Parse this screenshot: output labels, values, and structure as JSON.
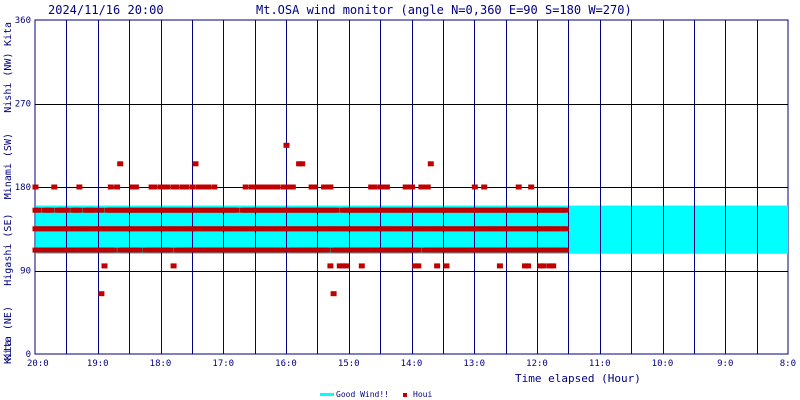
{
  "chart_data": {
    "type": "scatter",
    "title": "Mt.OSA wind monitor (angle N=0,360 E=90 S=180 W=270)",
    "timestamp": "2024/11/16 20:00",
    "xlabel": "Time elapsed (Hour)",
    "xlim": [
      0,
      12
    ],
    "x_ticks": [
      {
        "x": 0,
        "label": "20:0"
      },
      {
        "x": 1,
        "label": "19:0"
      },
      {
        "x": 2,
        "label": "18:0"
      },
      {
        "x": 3,
        "label": "17:0"
      },
      {
        "x": 4,
        "label": "16:0"
      },
      {
        "x": 5,
        "label": "15:0"
      },
      {
        "x": 6,
        "label": "14:0"
      },
      {
        "x": 7,
        "label": "13:0"
      },
      {
        "x": 8,
        "label": "12:0"
      },
      {
        "x": 9,
        "label": "11:0"
      },
      {
        "x": 10,
        "label": "10:0"
      },
      {
        "x": 11,
        "label": "9:0"
      },
      {
        "x": 12,
        "label": "8:0"
      }
    ],
    "ylim": [
      0,
      360
    ],
    "y_ticks": [
      0,
      90,
      180,
      270,
      360
    ],
    "direction_labels": [
      {
        "y": 22.5,
        "label": "Kita (NE)"
      },
      {
        "y": 112.5,
        "label": "Higashi (SE)"
      },
      {
        "y": 202.5,
        "label": "Minami (SW)"
      },
      {
        "y": 292.5,
        "label": "Nishi (NW)"
      },
      {
        "y": 360,
        "label": "Kita"
      }
    ],
    "good_wind_band": [
      108,
      160
    ],
    "series": [
      {
        "name": "Good Wind!!",
        "color": "#00ffff"
      },
      {
        "name": "Houi",
        "color": "#c00000"
      }
    ],
    "samples_per_hour": 20,
    "houi": [
      [
        135,
        112,
        155,
        180
      ],
      [
        155,
        112,
        135
      ],
      [
        135,
        112
      ],
      [
        155,
        135,
        112
      ],
      [
        135,
        112,
        155
      ],
      [
        112,
        155,
        135
      ],
      [
        135,
        112,
        180
      ],
      [
        155,
        112,
        135
      ],
      [
        112,
        135,
        155
      ],
      [
        135,
        155,
        112
      ],
      [
        155,
        112,
        135
      ],
      [
        135,
        112
      ],
      [
        112,
        135,
        155
      ],
      [
        135,
        155,
        112
      ],
      [
        155,
        112,
        135,
        180
      ],
      [
        112,
        135
      ],
      [
        135,
        112,
        155
      ],
      [
        155,
        112,
        135
      ],
      [
        112,
        135,
        155
      ],
      [
        135,
        112,
        155
      ],
      [
        135,
        112
      ],
      [
        155,
        112,
        135,
        65
      ],
      [
        95,
        112,
        135
      ],
      [
        155,
        135,
        112
      ],
      [
        112,
        135,
        155,
        180
      ],
      [
        135,
        112,
        155
      ],
      [
        155,
        180,
        135
      ],
      [
        135,
        155,
        112,
        205
      ],
      [
        155,
        112,
        135
      ],
      [
        135,
        155,
        112
      ],
      [
        135,
        112,
        155
      ],
      [
        112,
        135,
        155,
        180
      ],
      [
        155,
        112,
        135,
        180
      ],
      [
        135,
        155,
        112
      ],
      [
        155,
        135
      ],
      [
        112,
        135,
        155
      ],
      [
        135,
        112,
        155
      ],
      [
        155,
        112,
        135,
        180
      ],
      [
        135,
        155,
        112,
        180
      ],
      [
        112,
        135,
        155
      ],
      [
        135,
        112,
        155,
        180
      ],
      [
        135,
        155,
        112,
        180
      ],
      [
        155,
        112,
        135,
        180
      ],
      [
        135,
        112,
        155
      ],
      [
        155,
        135,
        95,
        180
      ],
      [
        112,
        135,
        155,
        180
      ],
      [
        135,
        155,
        112
      ],
      [
        155,
        112,
        135,
        180
      ],
      [
        135,
        155,
        112,
        180
      ],
      [
        112,
        135,
        155
      ],
      [
        155,
        112,
        135,
        180
      ],
      [
        135,
        112,
        155,
        205
      ],
      [
        155,
        112,
        135,
        180
      ],
      [
        112,
        135,
        155,
        180
      ],
      [
        135,
        155,
        112,
        180
      ],
      [
        155,
        112,
        135,
        180
      ],
      [
        135,
        155,
        112
      ],
      [
        112,
        135,
        155,
        180
      ],
      [
        135,
        112,
        155
      ],
      [
        155,
        112,
        135
      ],
      [
        135,
        155,
        112
      ],
      [
        135,
        112,
        155
      ],
      [
        112,
        135,
        155
      ],
      [
        135,
        112,
        155
      ],
      [
        155,
        112,
        135
      ],
      [
        112,
        135
      ],
      [
        135,
        155,
        112
      ],
      [
        155,
        112,
        135,
        180
      ],
      [
        135,
        112,
        155
      ],
      [
        112,
        135,
        155,
        180
      ],
      [
        155,
        112,
        135,
        180
      ],
      [
        135,
        155,
        112,
        180
      ],
      [
        155,
        112,
        135,
        180
      ],
      [
        135,
        112,
        155,
        180
      ],
      [
        112,
        135,
        155,
        180
      ],
      [
        135,
        155,
        112,
        180
      ],
      [
        155,
        112,
        135,
        180
      ],
      [
        135,
        112,
        155,
        180
      ],
      [
        112,
        135,
        155
      ],
      [
        135,
        112,
        155,
        180
      ],
      [
        155,
        135,
        225,
        180
      ],
      [
        135,
        112,
        155,
        180
      ],
      [
        155,
        112,
        135,
        180
      ],
      [
        155,
        112,
        135
      ],
      [
        135,
        155,
        112,
        205
      ],
      [
        112,
        135,
        155,
        205
      ],
      [
        155,
        112,
        135
      ],
      [
        135,
        112,
        155
      ],
      [
        155,
        112,
        135,
        180
      ],
      [
        135,
        155,
        112,
        180
      ],
      [
        135,
        112,
        155
      ],
      [
        155,
        135,
        112
      ],
      [
        135,
        112,
        155,
        180
      ],
      [
        112,
        135,
        155,
        180
      ],
      [
        155,
        135,
        95,
        180
      ],
      [
        135,
        112,
        155,
        65
      ],
      [
        155,
        112,
        135
      ],
      [
        135,
        112,
        95
      ],
      [
        112,
        135,
        155,
        95
      ],
      [
        135,
        155,
        112,
        95
      ],
      [
        155,
        112,
        135
      ],
      [
        135,
        112,
        155
      ],
      [
        112,
        135,
        155
      ],
      [
        135,
        112,
        155
      ],
      [
        155,
        112,
        135,
        95
      ],
      [
        135,
        112,
        155
      ],
      [
        135,
        155,
        112
      ],
      [
        155,
        112,
        135,
        180
      ],
      [
        135,
        112,
        155,
        180
      ],
      [
        112,
        135,
        155
      ],
      [
        155,
        112,
        135,
        180
      ],
      [
        135,
        155,
        112,
        180
      ],
      [
        155,
        112,
        135,
        180
      ],
      [
        135,
        112,
        155
      ],
      [
        112,
        135,
        155
      ],
      [
        135,
        155,
        112
      ],
      [
        155,
        112,
        135
      ],
      [
        135,
        112,
        155
      ],
      [
        112,
        135,
        155,
        180
      ],
      [
        135,
        155,
        112,
        180
      ],
      [
        135,
        112,
        155,
        180
      ],
      [
        155,
        112,
        135,
        95
      ],
      [
        135,
        112,
        155,
        95
      ],
      [
        155,
        180,
        135
      ],
      [
        135,
        155,
        112,
        180
      ],
      [
        112,
        135,
        155,
        180
      ],
      [
        155,
        112,
        135,
        205
      ],
      [
        135,
        112,
        155
      ],
      [
        155,
        112,
        135,
        95
      ],
      [
        135,
        155,
        112
      ],
      [
        135,
        112,
        155
      ],
      [
        155,
        135,
        112,
        95
      ],
      [
        112,
        135,
        155
      ],
      [
        135,
        155,
        112
      ],
      [
        155,
        112,
        135
      ],
      [
        135,
        112,
        155
      ],
      [
        112,
        135,
        155
      ],
      [
        155,
        112,
        135
      ],
      [
        135,
        112,
        155
      ],
      [
        112,
        135,
        155
      ],
      [
        155,
        112,
        135,
        180
      ],
      [
        135,
        155,
        112
      ],
      [
        135,
        112,
        155
      ],
      [
        155,
        112,
        135,
        180
      ],
      [
        112,
        135,
        155
      ],
      [
        135,
        155,
        112
      ],
      [
        155,
        112,
        135
      ],
      [
        135,
        112,
        155
      ],
      [
        112,
        135,
        155,
        95
      ],
      [
        135,
        155,
        112
      ],
      [
        135,
        112,
        155
      ],
      [
        155,
        112,
        135
      ],
      [
        135,
        112,
        155
      ],
      [
        112,
        135,
        155
      ],
      [
        155,
        112,
        135,
        180
      ],
      [
        135,
        155,
        112
      ],
      [
        155,
        112,
        135,
        95
      ],
      [
        135,
        112,
        155,
        95
      ],
      [
        112,
        135,
        155,
        180
      ],
      [
        135,
        112,
        155
      ],
      [
        135,
        155,
        112
      ],
      [
        155,
        112,
        135,
        95
      ],
      [
        135,
        112,
        155,
        95
      ],
      [
        112,
        135,
        155
      ],
      [
        135,
        155,
        112,
        95
      ],
      [
        155,
        112,
        135,
        95
      ],
      [
        135,
        112,
        155
      ],
      [
        135,
        155,
        112
      ],
      [
        112,
        135,
        155
      ],
      [
        135,
        112,
        155
      ]
    ]
  },
  "legend": {
    "good_wind": "Good Wind!!",
    "houi": "Houi"
  }
}
